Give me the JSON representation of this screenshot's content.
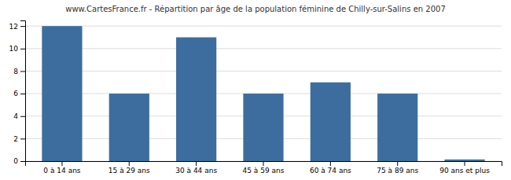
{
  "chart_data": {
    "type": "bar",
    "title": "www.CartesFrance.fr - Répartition par âge de la population féminine de Chilly-sur-Salins en 2007",
    "categories": [
      "0 à 14 ans",
      "15 à 29 ans",
      "30 à 44 ans",
      "45 à 59 ans",
      "60 à 74 ans",
      "75 à 89 ans",
      "90 ans et plus"
    ],
    "values": [
      12,
      6,
      11,
      6,
      7,
      6,
      0.15
    ],
    "color": "#3d6d9e",
    "ylim": [
      0,
      12.5
    ],
    "yticks": [
      0,
      2,
      4,
      6,
      8,
      10,
      12
    ],
    "grid": true
  }
}
